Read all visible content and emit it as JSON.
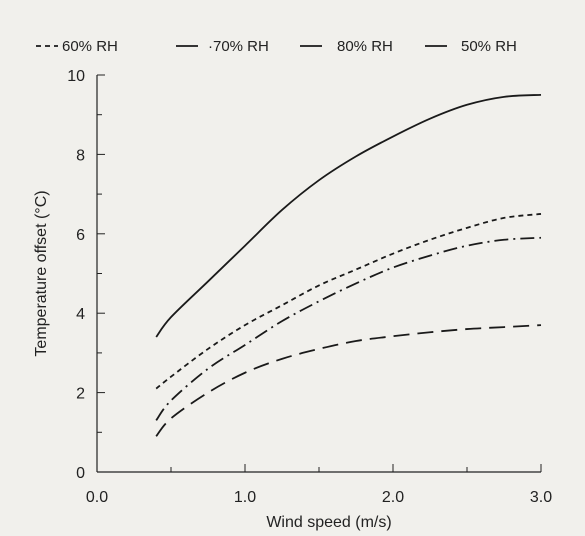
{
  "chart_data": {
    "type": "line",
    "xlabel": "Wind speed (m/s)",
    "ylabel": "Temperature offset (°C)",
    "xlim": [
      0.0,
      3.0
    ],
    "ylim": [
      0,
      10
    ],
    "x_ticks": [
      0.0,
      1.0,
      2.0,
      3.0
    ],
    "x_tick_labels": [
      "0.0",
      "1.0",
      "2.0",
      "3.0"
    ],
    "y_ticks": [
      0,
      2,
      4,
      6,
      8,
      10
    ],
    "y_tick_labels": [
      "0",
      "2",
      "4",
      "6",
      "8",
      "10"
    ],
    "grid": false,
    "legend_position": "top",
    "series": [
      {
        "name": "60% RH",
        "legend_label": "60% RH",
        "dash": "short-dash",
        "x": [
          0.4,
          0.5,
          0.75,
          1.0,
          1.25,
          1.5,
          1.75,
          2.0,
          2.25,
          2.5,
          2.75,
          3.0
        ],
        "y": [
          2.1,
          2.4,
          3.1,
          3.7,
          4.2,
          4.7,
          5.1,
          5.5,
          5.85,
          6.15,
          6.4,
          6.5
        ]
      },
      {
        "name": "70% RH",
        "legend_label": "·70% RH",
        "dash": "dash-dot",
        "x": [
          0.4,
          0.5,
          0.75,
          1.0,
          1.25,
          1.5,
          1.75,
          2.0,
          2.25,
          2.5,
          2.75,
          3.0
        ],
        "y": [
          1.3,
          1.8,
          2.6,
          3.2,
          3.8,
          4.3,
          4.75,
          5.15,
          5.45,
          5.7,
          5.85,
          5.9
        ]
      },
      {
        "name": "80% RH",
        "legend_label": "80% RH",
        "dash": "long-dash",
        "x": [
          0.4,
          0.5,
          0.75,
          1.0,
          1.25,
          1.5,
          1.75,
          2.0,
          2.25,
          2.5,
          2.75,
          3.0
        ],
        "y": [
          0.9,
          1.35,
          2.0,
          2.5,
          2.85,
          3.1,
          3.3,
          3.42,
          3.52,
          3.6,
          3.65,
          3.7
        ]
      },
      {
        "name": "50% RH",
        "legend_label": "50% RH",
        "dash": "solid",
        "x": [
          0.4,
          0.5,
          0.75,
          1.0,
          1.25,
          1.5,
          1.75,
          2.0,
          2.25,
          2.5,
          2.75,
          3.0
        ],
        "y": [
          3.4,
          3.9,
          4.8,
          5.7,
          6.6,
          7.35,
          7.95,
          8.45,
          8.9,
          9.25,
          9.45,
          9.5
        ]
      }
    ]
  }
}
